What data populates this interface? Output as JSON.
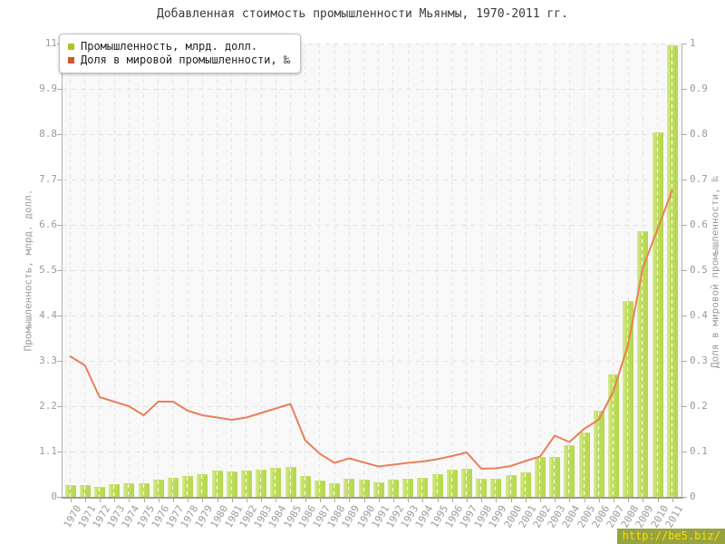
{
  "title": "Добавленная стоимость промышленности Мьянмы, 1970-2011 гг.",
  "watermark": "http://be5.biz/",
  "legend": {
    "items": [
      {
        "label": "Промышленность, млрд. долл.",
        "color": "#a6c620"
      },
      {
        "label": "Доля в мировой промышленности, ‰",
        "color": "#d5582b"
      }
    ]
  },
  "chart_data": {
    "type": "bar+line",
    "title": "Добавленная стоимость промышленности Мьянмы, 1970-2011 гг.",
    "categories": [
      "1970",
      "1971",
      "1972",
      "1973",
      "1974",
      "1975",
      "1976",
      "1977",
      "1978",
      "1979",
      "1980",
      "1981",
      "1982",
      "1983",
      "1984",
      "1985",
      "1986",
      "1987",
      "1988",
      "1989",
      "1990",
      "1991",
      "1992",
      "1993",
      "1994",
      "1995",
      "1996",
      "1997",
      "1998",
      "1999",
      "2000",
      "2001",
      "2002",
      "2003",
      "2004",
      "2005",
      "2006",
      "2007",
      "2008",
      "2009",
      "2010",
      "2011"
    ],
    "series": [
      {
        "name": "Промышленность, млрд. долл.",
        "type": "bar",
        "axis": "left",
        "color": "#bcdb58",
        "values": [
          0.28,
          0.29,
          0.24,
          0.3,
          0.34,
          0.32,
          0.41,
          0.47,
          0.5,
          0.56,
          0.63,
          0.61,
          0.64,
          0.66,
          0.7,
          0.73,
          0.51,
          0.4,
          0.34,
          0.45,
          0.41,
          0.36,
          0.42,
          0.44,
          0.47,
          0.56,
          0.65,
          0.69,
          0.43,
          0.44,
          0.53,
          0.6,
          0.96,
          0.97,
          1.25,
          1.57,
          2.08,
          2.96,
          4.76,
          6.45,
          8.85,
          10.95
        ]
      },
      {
        "name": "Доля в мировой промышленности, ‰",
        "type": "line",
        "axis": "right",
        "color": "#e8805a",
        "values": [
          0.31,
          0.29,
          0.22,
          0.21,
          0.2,
          0.18,
          0.21,
          0.21,
          0.19,
          0.18,
          0.175,
          0.17,
          0.175,
          0.185,
          0.195,
          0.205,
          0.125,
          0.095,
          0.075,
          0.085,
          0.076,
          0.067,
          0.071,
          0.075,
          0.078,
          0.083,
          0.09,
          0.098,
          0.062,
          0.063,
          0.068,
          0.079,
          0.089,
          0.135,
          0.121,
          0.15,
          0.17,
          0.233,
          0.336,
          0.505,
          0.59,
          0.676
        ]
      }
    ],
    "left_axis": {
      "label": "Промышленность, млрд. долл.",
      "tick_labels": [
        "0",
        "1.1",
        "2.2",
        "3.3",
        "4.4",
        "5.5",
        "6.6",
        "7.7",
        "8.8",
        "9.9",
        "11"
      ],
      "range": [
        0,
        11
      ]
    },
    "right_axis": {
      "label": "Доля в мировой промышленности, ‰",
      "tick_labels": [
        "0",
        "0.1",
        "0.2",
        "0.3",
        "0.4",
        "0.5",
        "0.6",
        "0.7",
        "0.8",
        "0.9",
        "1"
      ],
      "range": [
        0,
        1
      ]
    },
    "x_axis": {
      "tick_labels_rotation_deg": -60
    },
    "grid": true,
    "legend_position": "top-left",
    "plot_background": "#f8f8f8"
  }
}
